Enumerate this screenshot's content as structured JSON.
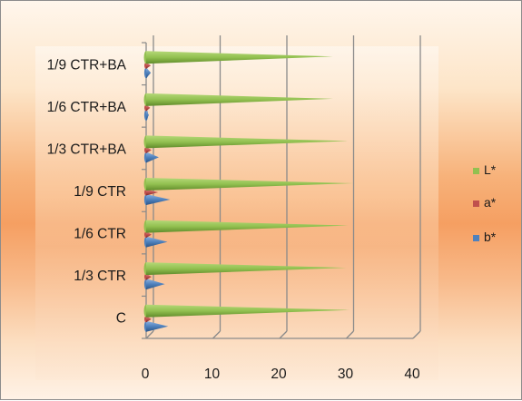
{
  "chart_data": {
    "type": "bar",
    "orientation": "horizontal",
    "style": "3d-cone",
    "categories": [
      "C",
      "1/3 CTR",
      "1/6 CTR",
      "1/9 CTR",
      "1/3 CTR+BA",
      "1/6 CTR+BA",
      "1/9 CTR+BA"
    ],
    "series": [
      {
        "name": "L*",
        "color": "#92c050",
        "values": [
          30.5,
          30,
          30.3,
          31,
          30.2,
          28,
          28
        ]
      },
      {
        "name": "a*",
        "color": "#c0504d",
        "values": [
          0.8,
          0.8,
          0.8,
          1.8,
          0.8,
          0.6,
          0.7
        ]
      },
      {
        "name": "b*",
        "color": "#4f81bd",
        "values": [
          3.3,
          2.8,
          3.2,
          3.6,
          1.9,
          0.4,
          0.7
        ]
      }
    ],
    "xlim": [
      0,
      40
    ],
    "x_ticks": [
      "0",
      "10",
      "20",
      "30",
      "40"
    ],
    "grid": true,
    "legend_position": "right",
    "title": "",
    "xlabel": "",
    "ylabel": ""
  }
}
